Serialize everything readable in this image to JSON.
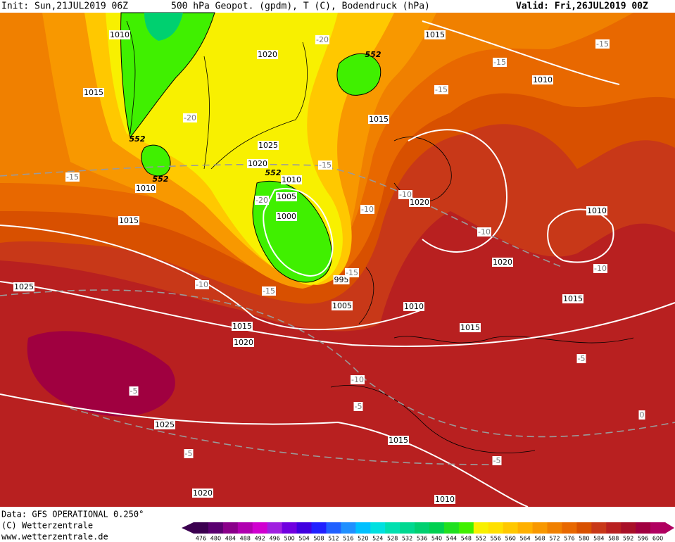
{
  "header": {
    "init": "Init: Sun,21JUL2019 06Z",
    "title": "500 hPa Geopot. (gpdm), T (C), Bodendruck (hPa)",
    "valid": "Valid: Fri,26JUL2019 00Z"
  },
  "map": {
    "isobar_labels": [
      1010,
      1020,
      1015,
      1015,
      1010,
      1015,
      1025,
      1020,
      1010,
      1010,
      1005,
      1000,
      1015,
      1020,
      1010,
      1020,
      995,
      1005,
      1010,
      1025,
      1015,
      1015,
      1015,
      1020,
      1025,
      1015,
      1020,
      1010
    ],
    "temperature_labels": [
      -20,
      -15,
      -15,
      -15,
      -20,
      -15,
      -15,
      -20,
      -10,
      -10,
      -10,
      -10,
      -15,
      -10,
      -15,
      -5,
      -10,
      -5,
      -5,
      0,
      -5,
      -5
    ],
    "geopotential_labels": [
      552,
      552,
      552,
      552
    ]
  },
  "footer": {
    "data": "Data: GFS OPERATIONAL 0.250°",
    "copyright": "(C) Wetterzentrale",
    "url": "www.wetterzentrale.de"
  },
  "colorbar": {
    "levels": [
      476,
      480,
      484,
      488,
      492,
      496,
      500,
      504,
      508,
      512,
      516,
      520,
      524,
      528,
      532,
      536,
      540,
      544,
      548,
      552,
      556,
      560,
      564,
      568,
      572,
      576,
      580,
      584,
      588,
      592,
      596,
      600
    ],
    "colors": [
      "#3b0050",
      "#5a0070",
      "#8a008a",
      "#b000b0",
      "#d000d0",
      "#a020e0",
      "#7000e0",
      "#4000e0",
      "#2020ff",
      "#2060ff",
      "#2090ff",
      "#00c0ff",
      "#00e0e0",
      "#00e0b0",
      "#00d890",
      "#00d070",
      "#00d050",
      "#20e020",
      "#40f000",
      "#f8f000",
      "#ffe000",
      "#ffc800",
      "#ffb000",
      "#f89800",
      "#f08000",
      "#e86800",
      "#d85000",
      "#c83818",
      "#b82020",
      "#a81028",
      "#a00040",
      "#b00060"
    ]
  }
}
